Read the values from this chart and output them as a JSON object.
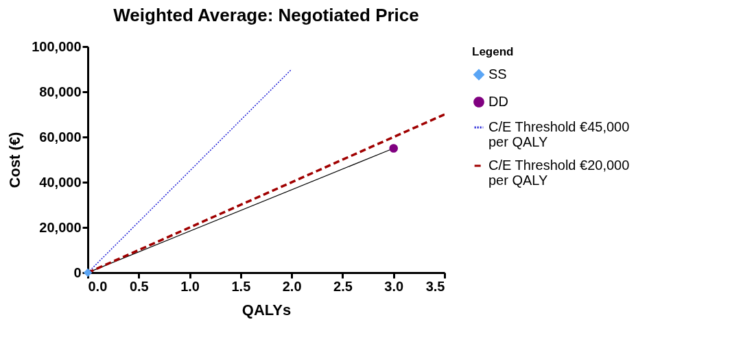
{
  "chart_data": {
    "type": "scatter",
    "title": "Weighted Average: Negotiated Price",
    "xlabel": "QALYs",
    "ylabel": "Cost (€)",
    "legend_title": "Legend",
    "legend": "right",
    "grid": false,
    "xlim": [
      0,
      3.5
    ],
    "xticks": [
      {
        "value": 0,
        "label": "0.0"
      },
      {
        "value": 0.5,
        "label": "0.5"
      },
      {
        "value": 1,
        "label": "1.0"
      },
      {
        "value": 1.5,
        "label": "1.5"
      },
      {
        "value": 2,
        "label": "2.0"
      },
      {
        "value": 2.5,
        "label": "2.5"
      },
      {
        "value": 3,
        "label": "3.0"
      },
      {
        "value": 3.5,
        "label": "3.5"
      }
    ],
    "ylim": [
      0,
      100000
    ],
    "yticks": [
      0,
      {
        "value": 20000,
        "label": "20,000"
      },
      {
        "value": 40000,
        "label": "40,000"
      },
      {
        "value": 60000,
        "label": "60,000"
      },
      {
        "value": 80000,
        "label": "80,000"
      },
      {
        "value": 100000,
        "label": "100,000"
      }
    ],
    "series": [
      {
        "name": "SS",
        "marker": "diamond",
        "color": "#5aa5f5",
        "x": [
          0
        ],
        "values": [
          0
        ]
      },
      {
        "name": "DD",
        "marker": "circle",
        "color": "#800080",
        "x": [
          3
        ],
        "values": [
          55000
        ]
      },
      {
        "type": "line",
        "line_style": "solid",
        "color": "#000000",
        "x": [
          0,
          3
        ],
        "values": [
          0,
          55000
        ]
      },
      {
        "name": "C/E Threshold €45,000 per QALY",
        "type": "line",
        "line_style": "dotted",
        "color": "#1a1ad6",
        "x": [
          0,
          2
        ],
        "values": [
          0,
          90000
        ]
      },
      {
        "name": "C/E Threshold €20,000 per QALY",
        "type": "line",
        "line_style": "dashed",
        "color": "#a00000",
        "x": [
          0,
          3.5
        ],
        "values": [
          0,
          70000
        ]
      }
    ]
  }
}
